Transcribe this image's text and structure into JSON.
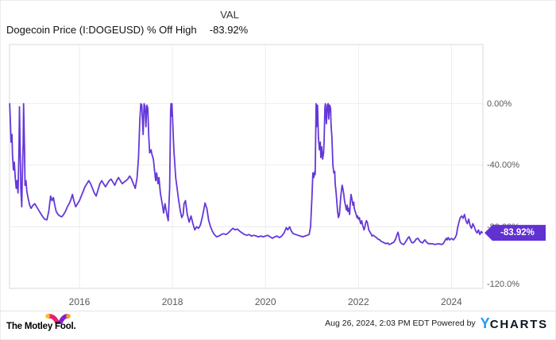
{
  "header": {
    "title": "Dogecoin Price (I:DOGEUSD) % Off High",
    "val_label": "VAL",
    "val_value": "-83.92%"
  },
  "badge": {
    "text": "-83.92%"
  },
  "colors": {
    "line": "#6438d8",
    "badge_bg": "#6131d2",
    "grid": "#ededed",
    "plot_border": "#d9d9d9",
    "axis_text": "#58595b",
    "ycharts_blue": "#1e9bf0",
    "fool_pink": "#e8216e",
    "fool_purple": "#8021c9",
    "fool_gold": "#ffc20e",
    "fool_orange": "#ff9e1b"
  },
  "footer": {
    "brand": "The Motley Fool.",
    "timestamp": "Aug 26, 2024, 2:03 PM EDT",
    "powered_by": "Powered by",
    "ycharts_y": "Y",
    "ycharts_rest": "CHARTS"
  },
  "chart_data": {
    "type": "line",
    "title": "Dogecoin Price (I:DOGEUSD) % Off High",
    "series_name": "% Off High",
    "unit": "%",
    "grid": true,
    "legend": "none",
    "x_range": [
      2014.5,
      2024.67
    ],
    "y_range_visible": [
      40,
      -124
    ],
    "last_value": -83.92,
    "y_ticks": [
      {
        "label": "0.00%",
        "value": 0
      },
      {
        "label": "-40.00%",
        "value": -40
      },
      {
        "label": "-80.00%",
        "value": -80
      },
      {
        "label": "-120.0%",
        "value": -120
      }
    ],
    "x_ticks": [
      {
        "label": "2016",
        "value": 2016
      },
      {
        "label": "2018",
        "value": 2018
      },
      {
        "label": "2020",
        "value": 2020
      },
      {
        "label": "2022",
        "value": 2022
      },
      {
        "label": "2024",
        "value": 2024
      }
    ],
    "points": [
      [
        2014.5,
        0
      ],
      [
        2014.52,
        -15
      ],
      [
        2014.53,
        -25
      ],
      [
        2014.55,
        -20
      ],
      [
        2014.56,
        -33
      ],
      [
        2014.58,
        -43
      ],
      [
        2014.6,
        -38
      ],
      [
        2014.62,
        -48
      ],
      [
        2014.64,
        -55
      ],
      [
        2014.66,
        -50
      ],
      [
        2014.68,
        -58
      ],
      [
        2014.7,
        -30
      ],
      [
        2014.71,
        -2
      ],
      [
        2014.73,
        -35
      ],
      [
        2014.74,
        -55
      ],
      [
        2014.76,
        -67
      ],
      [
        2014.77,
        -50
      ],
      [
        2014.79,
        -25
      ],
      [
        2014.8,
        0
      ],
      [
        2014.82,
        -30
      ],
      [
        2014.83,
        -53
      ],
      [
        2014.85,
        -50
      ],
      [
        2014.87,
        -57
      ],
      [
        2014.9,
        -62
      ],
      [
        2014.93,
        -66
      ],
      [
        2014.96,
        -68
      ],
      [
        2015.0,
        -66
      ],
      [
        2015.04,
        -65
      ],
      [
        2015.08,
        -67
      ],
      [
        2015.12,
        -69
      ],
      [
        2015.16,
        -71
      ],
      [
        2015.2,
        -73
      ],
      [
        2015.25,
        -75
      ],
      [
        2015.3,
        -75.5
      ],
      [
        2015.34,
        -70
      ],
      [
        2015.38,
        -60
      ],
      [
        2015.41,
        -63
      ],
      [
        2015.44,
        -61
      ],
      [
        2015.47,
        -66
      ],
      [
        2015.5,
        -70
      ],
      [
        2015.54,
        -72
      ],
      [
        2015.58,
        -73
      ],
      [
        2015.62,
        -73.5
      ],
      [
        2015.66,
        -72
      ],
      [
        2015.7,
        -70
      ],
      [
        2015.74,
        -67
      ],
      [
        2015.78,
        -65
      ],
      [
        2015.82,
        -62
      ],
      [
        2015.85,
        -59
      ],
      [
        2015.88,
        -63
      ],
      [
        2015.92,
        -67
      ],
      [
        2015.96,
        -65
      ],
      [
        2016.0,
        -63
      ],
      [
        2016.04,
        -60
      ],
      [
        2016.08,
        -57
      ],
      [
        2016.12,
        -54
      ],
      [
        2016.16,
        -52
      ],
      [
        2016.2,
        -50
      ],
      [
        2016.24,
        -52
      ],
      [
        2016.28,
        -55
      ],
      [
        2016.32,
        -58
      ],
      [
        2016.36,
        -60
      ],
      [
        2016.4,
        -56
      ],
      [
        2016.44,
        -52
      ],
      [
        2016.48,
        -50
      ],
      [
        2016.52,
        -52
      ],
      [
        2016.56,
        -54
      ],
      [
        2016.6,
        -52
      ],
      [
        2016.64,
        -50
      ],
      [
        2016.68,
        -49
      ],
      [
        2016.72,
        -51
      ],
      [
        2016.76,
        -53
      ],
      [
        2016.8,
        -50
      ],
      [
        2016.84,
        -48
      ],
      [
        2016.88,
        -50
      ],
      [
        2016.92,
        -52
      ],
      [
        2016.96,
        -51
      ],
      [
        2017.0,
        -50
      ],
      [
        2017.04,
        -49
      ],
      [
        2017.08,
        -47
      ],
      [
        2017.12,
        -49
      ],
      [
        2017.16,
        -52
      ],
      [
        2017.2,
        -55
      ],
      [
        2017.24,
        -48
      ],
      [
        2017.27,
        -35
      ],
      [
        2017.3,
        -10
      ],
      [
        2017.32,
        0
      ],
      [
        2017.34,
        -1
      ],
      [
        2017.37,
        -20
      ],
      [
        2017.39,
        0
      ],
      [
        2017.41,
        -2
      ],
      [
        2017.43,
        -15
      ],
      [
        2017.45,
        -1
      ],
      [
        2017.47,
        -3
      ],
      [
        2017.49,
        -20
      ],
      [
        2017.51,
        -32
      ],
      [
        2017.54,
        -30
      ],
      [
        2017.56,
        -33
      ],
      [
        2017.59,
        -36
      ],
      [
        2017.62,
        -45
      ],
      [
        2017.64,
        -50
      ],
      [
        2017.66,
        -45
      ],
      [
        2017.69,
        -52
      ],
      [
        2017.71,
        -48
      ],
      [
        2017.74,
        -58
      ],
      [
        2017.78,
        -65
      ],
      [
        2017.81,
        -71
      ],
      [
        2017.84,
        -65
      ],
      [
        2017.88,
        -72
      ],
      [
        2017.91,
        -76
      ],
      [
        2017.94,
        -55
      ],
      [
        2017.96,
        -5
      ],
      [
        2017.97,
        0
      ],
      [
        2017.98,
        -8
      ],
      [
        2017.99,
        0
      ],
      [
        2018.01,
        -15
      ],
      [
        2018.03,
        -30
      ],
      [
        2018.07,
        -48
      ],
      [
        2018.1,
        -55
      ],
      [
        2018.13,
        -62
      ],
      [
        2018.17,
        -70
      ],
      [
        2018.2,
        -74
      ],
      [
        2018.23,
        -72
      ],
      [
        2018.25,
        -65
      ],
      [
        2018.28,
        -63
      ],
      [
        2018.32,
        -72
      ],
      [
        2018.36,
        -77
      ],
      [
        2018.4,
        -73
      ],
      [
        2018.44,
        -78
      ],
      [
        2018.48,
        -82
      ],
      [
        2018.52,
        -80
      ],
      [
        2018.56,
        -81
      ],
      [
        2018.6,
        -79
      ],
      [
        2018.64,
        -74
      ],
      [
        2018.68,
        -68
      ],
      [
        2018.7,
        -64.5
      ],
      [
        2018.74,
        -68
      ],
      [
        2018.78,
        -76
      ],
      [
        2018.82,
        -80
      ],
      [
        2018.86,
        -83
      ],
      [
        2018.9,
        -85
      ],
      [
        2018.95,
        -86.5
      ],
      [
        2019.0,
        -86
      ],
      [
        2019.05,
        -85
      ],
      [
        2019.1,
        -84.5
      ],
      [
        2019.15,
        -85
      ],
      [
        2019.2,
        -84
      ],
      [
        2019.25,
        -82.5
      ],
      [
        2019.3,
        -81
      ],
      [
        2019.35,
        -82
      ],
      [
        2019.4,
        -81.5
      ],
      [
        2019.45,
        -83
      ],
      [
        2019.5,
        -84
      ],
      [
        2019.55,
        -85
      ],
      [
        2019.6,
        -85.5
      ],
      [
        2019.65,
        -85
      ],
      [
        2019.7,
        -86
      ],
      [
        2019.75,
        -85.5
      ],
      [
        2019.8,
        -86
      ],
      [
        2019.85,
        -86.5
      ],
      [
        2019.9,
        -86
      ],
      [
        2019.95,
        -86.5
      ],
      [
        2020.0,
        -86
      ],
      [
        2020.05,
        -85.5
      ],
      [
        2020.1,
        -86.5
      ],
      [
        2020.15,
        -87.5
      ],
      [
        2020.2,
        -86.5
      ],
      [
        2020.25,
        -86
      ],
      [
        2020.3,
        -87
      ],
      [
        2020.35,
        -86
      ],
      [
        2020.4,
        -84
      ],
      [
        2020.45,
        -80.5
      ],
      [
        2020.48,
        -82
      ],
      [
        2020.52,
        -80
      ],
      [
        2020.56,
        -83
      ],
      [
        2020.6,
        -84.5
      ],
      [
        2020.65,
        -85
      ],
      [
        2020.7,
        -85.5
      ],
      [
        2020.75,
        -86
      ],
      [
        2020.8,
        -86.5
      ],
      [
        2020.85,
        -86
      ],
      [
        2020.9,
        -85.5
      ],
      [
        2020.94,
        -85
      ],
      [
        2020.97,
        -80
      ],
      [
        2021.0,
        -60
      ],
      [
        2021.02,
        -45
      ],
      [
        2021.04,
        -48
      ],
      [
        2021.06,
        -44
      ],
      [
        2021.07,
        -46
      ],
      [
        2021.09,
        0
      ],
      [
        2021.1,
        -15
      ],
      [
        2021.12,
        -1
      ],
      [
        2021.14,
        -22
      ],
      [
        2021.16,
        -30
      ],
      [
        2021.18,
        -25
      ],
      [
        2021.19,
        -35
      ],
      [
        2021.21,
        -28
      ],
      [
        2021.23,
        -36
      ],
      [
        2021.25,
        -32
      ],
      [
        2021.26,
        -25
      ],
      [
        2021.28,
        -2
      ],
      [
        2021.29,
        0
      ],
      [
        2021.31,
        -13
      ],
      [
        2021.33,
        -1
      ],
      [
        2021.35,
        0
      ],
      [
        2021.36,
        -10
      ],
      [
        2021.38,
        -1
      ],
      [
        2021.4,
        -3
      ],
      [
        2021.41,
        -14
      ],
      [
        2021.43,
        -22
      ],
      [
        2021.45,
        -40
      ],
      [
        2021.47,
        -45
      ],
      [
        2021.49,
        -44
      ],
      [
        2021.5,
        -52
      ],
      [
        2021.52,
        -58
      ],
      [
        2021.53,
        -62
      ],
      [
        2021.55,
        -70
      ],
      [
        2021.57,
        -74
      ],
      [
        2021.59,
        -72
      ],
      [
        2021.6,
        -68
      ],
      [
        2021.62,
        -60
      ],
      [
        2021.64,
        -55
      ],
      [
        2021.65,
        -53
      ],
      [
        2021.67,
        -56
      ],
      [
        2021.69,
        -60
      ],
      [
        2021.7,
        -63
      ],
      [
        2021.72,
        -66
      ],
      [
        2021.74,
        -69
      ],
      [
        2021.76,
        -66
      ],
      [
        2021.77,
        -70
      ],
      [
        2021.79,
        -68
      ],
      [
        2021.81,
        -72
      ],
      [
        2021.82,
        -66
      ],
      [
        2021.84,
        -59
      ],
      [
        2021.86,
        -62
      ],
      [
        2021.88,
        -66
      ],
      [
        2021.9,
        -64
      ],
      [
        2021.91,
        -68
      ],
      [
        2021.93,
        -70
      ],
      [
        2021.95,
        -72
      ],
      [
        2021.97,
        -74
      ],
      [
        2021.98,
        -73
      ],
      [
        2022.0,
        -75
      ],
      [
        2022.02,
        -74
      ],
      [
        2022.03,
        -76
      ],
      [
        2022.05,
        -78
      ],
      [
        2022.07,
        -76
      ],
      [
        2022.09,
        -79
      ],
      [
        2022.1,
        -80
      ],
      [
        2022.12,
        -82
      ],
      [
        2022.14,
        -80
      ],
      [
        2022.15,
        -78
      ],
      [
        2022.17,
        -76
      ],
      [
        2022.19,
        -77
      ],
      [
        2022.21,
        -80
      ],
      [
        2022.22,
        -82
      ],
      [
        2022.24,
        -83
      ],
      [
        2022.26,
        -84
      ],
      [
        2022.28,
        -85
      ],
      [
        2022.29,
        -86
      ],
      [
        2022.32,
        -85.5
      ],
      [
        2022.36,
        -86.5
      ],
      [
        2022.39,
        -87
      ],
      [
        2022.42,
        -88
      ],
      [
        2022.46,
        -88.5
      ],
      [
        2022.49,
        -89.5
      ],
      [
        2022.53,
        -90
      ],
      [
        2022.56,
        -90.5
      ],
      [
        2022.59,
        -91
      ],
      [
        2022.63,
        -90.5
      ],
      [
        2022.66,
        -91.5
      ],
      [
        2022.7,
        -91
      ],
      [
        2022.73,
        -90.5
      ],
      [
        2022.76,
        -90
      ],
      [
        2022.8,
        -88
      ],
      [
        2022.83,
        -85
      ],
      [
        2022.85,
        -83.5
      ],
      [
        2022.87,
        -86
      ],
      [
        2022.88,
        -88
      ],
      [
        2022.9,
        -90
      ],
      [
        2022.93,
        -91
      ],
      [
        2022.97,
        -91.5
      ],
      [
        2023.0,
        -90.5
      ],
      [
        2023.03,
        -89
      ],
      [
        2023.07,
        -87
      ],
      [
        2023.09,
        -86.5
      ],
      [
        2023.11,
        -88
      ],
      [
        2023.14,
        -90
      ],
      [
        2023.17,
        -90.5
      ],
      [
        2023.21,
        -89.5
      ],
      [
        2023.24,
        -88
      ],
      [
        2023.28,
        -87.5
      ],
      [
        2023.31,
        -89
      ],
      [
        2023.34,
        -90
      ],
      [
        2023.38,
        -90.5
      ],
      [
        2023.41,
        -89
      ],
      [
        2023.43,
        -88.5
      ],
      [
        2023.45,
        -89.5
      ],
      [
        2023.48,
        -90.5
      ],
      [
        2023.51,
        -91
      ],
      [
        2023.58,
        -91
      ],
      [
        2023.65,
        -91.5
      ],
      [
        2023.72,
        -91
      ],
      [
        2023.79,
        -91.5
      ],
      [
        2023.82,
        -91
      ],
      [
        2023.86,
        -89
      ],
      [
        2023.89,
        -87.5
      ],
      [
        2023.91,
        -88.5
      ],
      [
        2023.93,
        -87
      ],
      [
        2023.96,
        -88.5
      ],
      [
        2024.0,
        -87.5
      ],
      [
        2024.04,
        -88.5
      ],
      [
        2024.08,
        -87
      ],
      [
        2024.11,
        -85
      ],
      [
        2024.13,
        -81
      ],
      [
        2024.16,
        -77
      ],
      [
        2024.19,
        -74
      ],
      [
        2024.22,
        -73
      ],
      [
        2024.25,
        -74.5
      ],
      [
        2024.28,
        -72
      ],
      [
        2024.31,
        -76
      ],
      [
        2024.34,
        -78
      ],
      [
        2024.37,
        -75
      ],
      [
        2024.4,
        -79
      ],
      [
        2024.43,
        -81
      ],
      [
        2024.46,
        -78
      ],
      [
        2024.49,
        -80
      ],
      [
        2024.52,
        -82.5
      ],
      [
        2024.55,
        -84
      ],
      [
        2024.58,
        -82
      ],
      [
        2024.61,
        -85
      ],
      [
        2024.64,
        -83
      ],
      [
        2024.66,
        -83.92
      ]
    ]
  }
}
